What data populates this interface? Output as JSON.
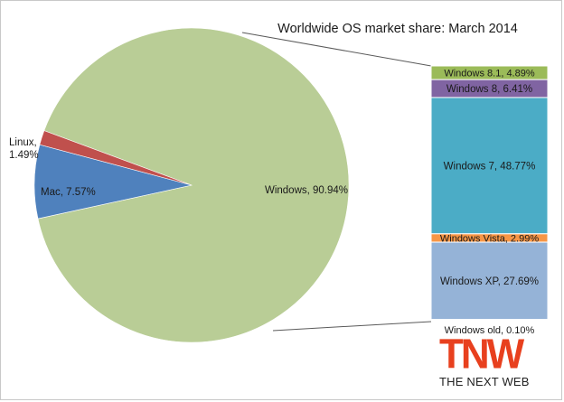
{
  "chart_data": [
    {
      "type": "pie",
      "title": "Worldwide OS market share: March 2014",
      "slices": [
        {
          "name": "Windows",
          "value": 90.94,
          "label": "Windows, 90.94%",
          "color": "#b9cd96"
        },
        {
          "name": "Linux",
          "value": 1.49,
          "label_line1": "Linux,",
          "label_line2": "1.49%",
          "color": "#c0504d"
        },
        {
          "name": "Mac",
          "value": 7.57,
          "label": "Mac, 7.57%",
          "color": "#4f81bd"
        }
      ]
    },
    {
      "type": "stacked_bar",
      "segments": [
        {
          "name": "Windows 8.1",
          "value": 4.89,
          "label": "Windows 8.1, 4.89%",
          "color": "#9bbb59"
        },
        {
          "name": "Windows 8",
          "value": 6.41,
          "label": "Windows 8, 6.41%",
          "color": "#8064a2"
        },
        {
          "name": "Windows 7",
          "value": 48.77,
          "label": "Windows 7, 48.77%",
          "color": "#4bacc6"
        },
        {
          "name": "Windows Vista",
          "value": 2.99,
          "label": "Windows Vista, 2.99%",
          "color": "#f79646"
        },
        {
          "name": "Windows XP",
          "value": 27.69,
          "label": "Windows XP, 27.69%",
          "color": "#95b3d7"
        },
        {
          "name": "Windows old",
          "value": 0.1,
          "label": "Windows old, 0.10%",
          "color": "#e0e8f4"
        }
      ]
    }
  ],
  "logo": {
    "letters": "TNW",
    "tagline": "THE NEXT WEB",
    "color": "#e8401e"
  }
}
